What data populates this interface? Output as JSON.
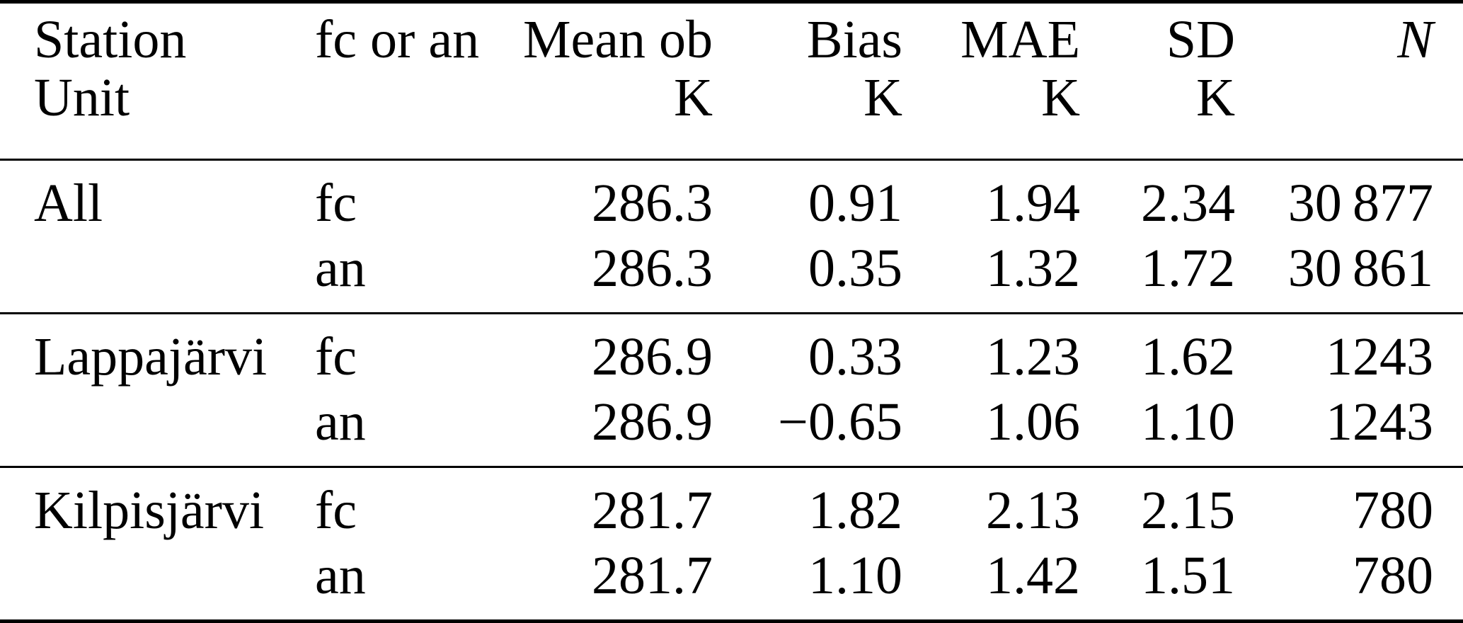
{
  "table": {
    "header": {
      "station": {
        "line1": "Station",
        "line2": "Unit"
      },
      "fc_or_an": {
        "line1": "fc or an",
        "line2": ""
      },
      "mean_ob": {
        "line1": "Mean ob",
        "line2": "K"
      },
      "bias": {
        "line1": "Bias",
        "line2": "K"
      },
      "mae": {
        "line1": "MAE",
        "line2": "K"
      },
      "sd": {
        "line1": "SD",
        "line2": "K"
      },
      "n": {
        "line1": "N",
        "line2": ""
      }
    },
    "groups": [
      {
        "station": "All",
        "rows": [
          {
            "type": "fc",
            "mean_ob": "286.3",
            "bias": "0.91",
            "mae": "1.94",
            "sd": "2.34",
            "n": "30 877"
          },
          {
            "type": "an",
            "mean_ob": "286.3",
            "bias": "0.35",
            "mae": "1.32",
            "sd": "1.72",
            "n": "30 861"
          }
        ]
      },
      {
        "station": "Lappajärvi",
        "rows": [
          {
            "type": "fc",
            "mean_ob": "286.9",
            "bias": "0.33",
            "mae": "1.23",
            "sd": "1.62",
            "n": "1243"
          },
          {
            "type": "an",
            "mean_ob": "286.9",
            "bias": "−0.65",
            "mae": "1.06",
            "sd": "1.10",
            "n": "1243"
          }
        ]
      },
      {
        "station": "Kilpisjärvi",
        "rows": [
          {
            "type": "fc",
            "mean_ob": "281.7",
            "bias": "1.82",
            "mae": "2.13",
            "sd": "2.15",
            "n": "780"
          },
          {
            "type": "an",
            "mean_ob": "281.7",
            "bias": "1.10",
            "mae": "1.42",
            "sd": "1.51",
            "n": "780"
          }
        ]
      }
    ],
    "colors": {
      "text": "#000000",
      "background": "#ffffff",
      "rule": "#000000"
    }
  }
}
